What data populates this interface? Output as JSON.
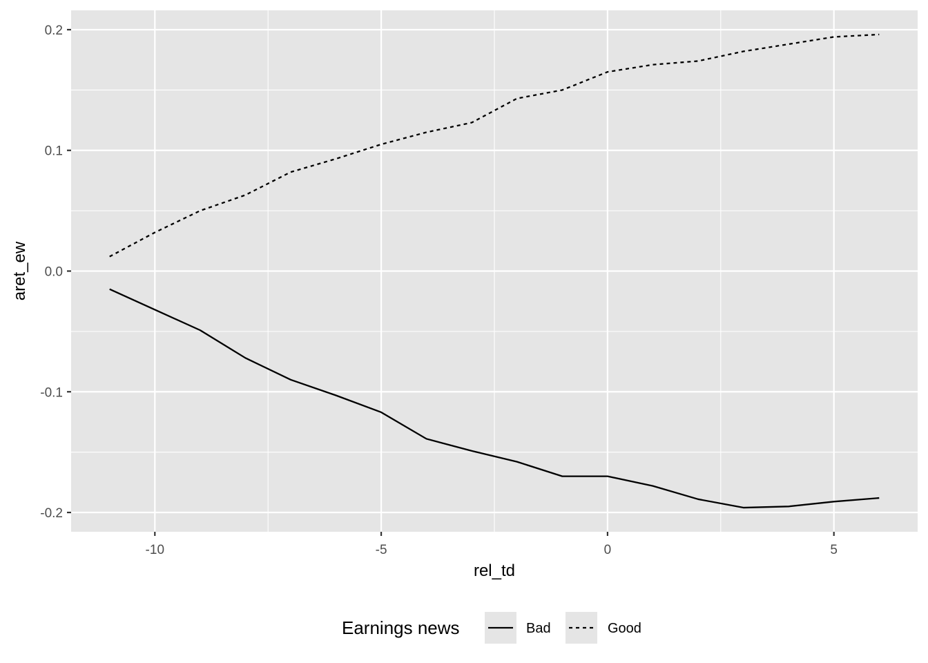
{
  "chart_data": {
    "type": "line",
    "title": "",
    "xlabel": "rel_td",
    "ylabel": "aret_ew",
    "xlim": [
      -11.85,
      6.85
    ],
    "ylim": [
      -0.216,
      0.216
    ],
    "x_ticks": [
      -10,
      -5,
      0,
      5
    ],
    "x_tick_labels": [
      "-10",
      "-5",
      "0",
      "5"
    ],
    "y_ticks": [
      -0.2,
      -0.1,
      0.0,
      0.1,
      0.2
    ],
    "y_tick_labels": [
      "-0.2",
      "-0.1",
      "0.0",
      "0.1",
      "0.2"
    ],
    "grid": true,
    "panel_background": "#e5e5e5",
    "line_color": "#000000",
    "legend": {
      "title": "Earnings news",
      "position": "bottom"
    },
    "x": [
      -11,
      -10,
      -9,
      -8,
      -7,
      -6,
      -5,
      -4,
      -3,
      -2,
      -1,
      0,
      1,
      2,
      3,
      4,
      5,
      6
    ],
    "series": [
      {
        "name": "Bad",
        "linetype": "solid",
        "values": [
          -0.015,
          -0.032,
          -0.049,
          -0.072,
          -0.09,
          -0.103,
          -0.117,
          -0.139,
          -0.149,
          -0.158,
          -0.17,
          -0.17,
          -0.178,
          -0.189,
          -0.196,
          -0.195,
          -0.191,
          -0.188
        ]
      },
      {
        "name": "Good",
        "linetype": "dashed",
        "values": [
          0.012,
          0.032,
          0.05,
          0.063,
          0.082,
          0.093,
          0.105,
          0.115,
          0.123,
          0.143,
          0.15,
          0.165,
          0.171,
          0.174,
          0.182,
          0.188,
          0.194,
          0.196
        ]
      }
    ]
  }
}
